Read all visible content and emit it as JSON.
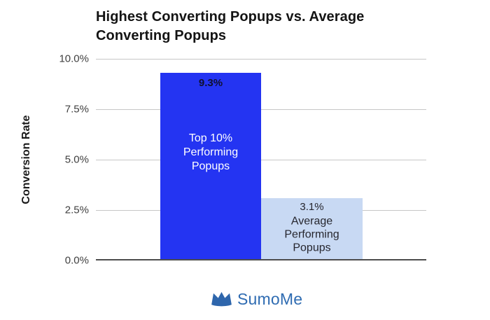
{
  "chart": {
    "title_line1": "Highest Converting Popups vs. Average",
    "title_line2": "Converting Popups",
    "y_axis_title": "Conversion Rate",
    "bars": [
      {
        "value_label": "9.3%",
        "category_lines": "Top 10%\nPerforming\nPopups"
      },
      {
        "value_label": "3.1%",
        "category_lines": "Average\nPerforming\nPopups"
      }
    ]
  },
  "chart_data": {
    "type": "bar",
    "title": "Highest Converting Popups vs. Average Converting Popups",
    "categories": [
      "Top 10% Performing Popups",
      "Average Performing Popups"
    ],
    "values": [
      9.3,
      3.1
    ],
    "value_labels": [
      "9.3%",
      "3.1%"
    ],
    "xlabel": "",
    "ylabel": "Conversion Rate",
    "ylim": [
      0,
      10
    ],
    "ytick_values": [
      0,
      2.5,
      5,
      7.5,
      10
    ],
    "ytick_labels": [
      "0.0%",
      "2.5%",
      "5.0%",
      "7.5%",
      "10.0%"
    ],
    "grid": true,
    "legend": false,
    "bar_colors": [
      "#2434f2",
      "#c8d9f3"
    ],
    "bar_text_colors": [
      "#ffffff",
      "#26262e"
    ]
  },
  "footer": {
    "brand": "SumoMe",
    "brand_color": "#2f6cb2",
    "icon": "crown-icon"
  }
}
